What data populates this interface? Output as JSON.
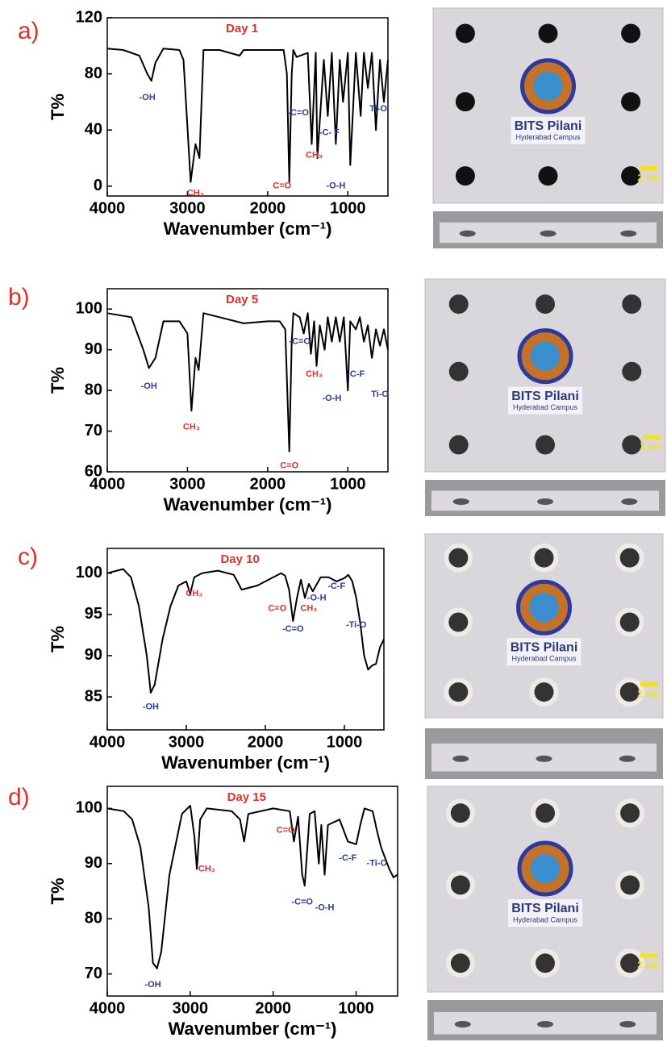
{
  "chart_data": [
    {
      "type": "line",
      "label": "a)",
      "title": "Day 1",
      "xlabel": "Wavenumber (cm⁻¹)",
      "ylabel": "T%",
      "color": "#000000",
      "xlim": [
        4000,
        500
      ],
      "ylim": [
        -7,
        120
      ],
      "xticks": [
        4000,
        3000,
        2000,
        1000
      ],
      "yticks": [
        0,
        40,
        80,
        120
      ],
      "x": [
        4000,
        3800,
        3600,
        3500,
        3450,
        3400,
        3300,
        3100,
        3050,
        2960,
        2900,
        2850,
        2800,
        2600,
        2350,
        2300,
        2000,
        1800,
        1760,
        1730,
        1700,
        1680,
        1640,
        1500,
        1450,
        1400,
        1380,
        1300,
        1250,
        1200,
        1150,
        1100,
        1060,
        1000,
        970,
        900,
        840,
        800,
        750,
        700,
        650,
        600,
        550,
        500
      ],
      "values": [
        98,
        97,
        93,
        80,
        75,
        88,
        98,
        97,
        90,
        3,
        30,
        20,
        97,
        97,
        93,
        97,
        97,
        97,
        80,
        3,
        80,
        97,
        92,
        95,
        30,
        95,
        20,
        90,
        50,
        95,
        30,
        90,
        60,
        95,
        15,
        95,
        50,
        95,
        70,
        95,
        40,
        90,
        60,
        90
      ],
      "annotations": [
        {
          "text": "-OH",
          "x": 3500,
          "y": 63,
          "color": "#2b3a9c"
        },
        {
          "text": "CH₃",
          "x": 2900,
          "y": -5,
          "color": "#e0302a"
        },
        {
          "text": "C=O",
          "x": 1820,
          "y": 0,
          "color": "#e0302a"
        },
        {
          "text": "-C=O",
          "x": 1620,
          "y": 52,
          "color": "#2b3a9c"
        },
        {
          "text": "CH₃",
          "x": 1420,
          "y": 22,
          "color": "#e0302a"
        },
        {
          "text": "-C- F",
          "x": 1230,
          "y": 38,
          "color": "#2b3a9c"
        },
        {
          "text": "-O-H",
          "x": 1150,
          "y": 0,
          "color": "#2b3a9c"
        },
        {
          "text": "Ti-O",
          "x": 620,
          "y": 55,
          "color": "#2b3a9c"
        }
      ]
    },
    {
      "type": "line",
      "label": "b)",
      "title": "Day 5",
      "xlabel": "Wavenumber (cm⁻¹)",
      "ylabel": "T%",
      "color": "#000000",
      "xlim": [
        4000,
        500
      ],
      "ylim": [
        60,
        105
      ],
      "xticks": [
        4000,
        3000,
        2000,
        1000
      ],
      "yticks": [
        60,
        70,
        80,
        90,
        100
      ],
      "x": [
        4000,
        3700,
        3550,
        3480,
        3400,
        3300,
        3100,
        3000,
        2950,
        2900,
        2860,
        2800,
        2600,
        2300,
        2000,
        1850,
        1780,
        1730,
        1700,
        1680,
        1600,
        1550,
        1500,
        1460,
        1420,
        1390,
        1350,
        1290,
        1250,
        1200,
        1150,
        1100,
        1050,
        1000,
        970,
        900,
        850,
        800,
        750,
        700,
        650,
        600,
        550,
        500
      ],
      "values": [
        99,
        98,
        90,
        85.5,
        88,
        97,
        97,
        94,
        75,
        88,
        85,
        99,
        98,
        96.5,
        97,
        97,
        95,
        65,
        92,
        99,
        98,
        94,
        99,
        89,
        97,
        86,
        96,
        90,
        98,
        92,
        98,
        92,
        98,
        80,
        97,
        95,
        98,
        92,
        96,
        88,
        95,
        91,
        95,
        90
      ],
      "annotations": [
        {
          "text": "-OH",
          "x": 3480,
          "y": 81,
          "color": "#2b3a9c"
        },
        {
          "text": "CH₃",
          "x": 2950,
          "y": 71,
          "color": "#e0302a"
        },
        {
          "text": "C=O",
          "x": 1730,
          "y": 61.5,
          "color": "#e0302a"
        },
        {
          "text": "-C=O",
          "x": 1600,
          "y": 92,
          "color": "#2b3a9c"
        },
        {
          "text": "CH₃",
          "x": 1420,
          "y": 84,
          "color": "#e0302a"
        },
        {
          "text": "-O-H",
          "x": 1200,
          "y": 78,
          "color": "#2b3a9c"
        },
        {
          "text": "-C-F",
          "x": 900,
          "y": 84,
          "color": "#2b3a9c"
        },
        {
          "text": "Ti-O",
          "x": 600,
          "y": 79,
          "color": "#2b3a9c"
        }
      ]
    },
    {
      "type": "line",
      "label": "c)",
      "title": "Day 10",
      "xlabel": "Wavenumber (cm⁻¹)",
      "ylabel": "T%",
      "color": "#000000",
      "xlim": [
        4000,
        500
      ],
      "ylim": [
        81,
        103
      ],
      "xticks": [
        4000,
        3000,
        2000,
        1000
      ],
      "yticks": [
        85,
        90,
        95,
        100
      ],
      "x": [
        4000,
        3800,
        3700,
        3600,
        3500,
        3450,
        3400,
        3300,
        3200,
        3100,
        3000,
        2950,
        2900,
        2800,
        2600,
        2400,
        2300,
        2100,
        1900,
        1800,
        1750,
        1700,
        1650,
        1600,
        1550,
        1500,
        1450,
        1400,
        1300,
        1200,
        1100,
        1000,
        950,
        900,
        850,
        800,
        750,
        700,
        650,
        600,
        550,
        500
      ],
      "values": [
        100,
        100.5,
        99.5,
        96,
        90,
        85.5,
        86.5,
        92,
        96,
        98.5,
        99,
        97.5,
        99.5,
        100,
        100.3,
        99.8,
        98,
        98.5,
        99.5,
        100,
        99.7,
        98,
        94.2,
        97,
        99.2,
        97,
        98.7,
        97.8,
        99.5,
        99.5,
        99,
        99.4,
        99.8,
        99,
        97,
        94,
        90,
        88.3,
        88.8,
        89,
        91,
        92
      ],
      "annotations": [
        {
          "text": "-OH",
          "x": 3450,
          "y": 83.8,
          "color": "#2b3a9c"
        },
        {
          "text": "CH₃",
          "x": 2900,
          "y": 97.5,
          "color": "#e0302a"
        },
        {
          "text": "C=O",
          "x": 1850,
          "y": 95.7,
          "color": "#e0302a"
        },
        {
          "text": "-C=O",
          "x": 1650,
          "y": 93.2,
          "color": "#2b3a9c"
        },
        {
          "text": "CH₃",
          "x": 1450,
          "y": 95.7,
          "color": "#e0302a"
        },
        {
          "text": "-O-H",
          "x": 1350,
          "y": 97,
          "color": "#2b3a9c"
        },
        {
          "text": "-C-F",
          "x": 1100,
          "y": 98.4,
          "color": "#2b3a9c"
        },
        {
          "text": "-Ti-O",
          "x": 850,
          "y": 93.7,
          "color": "#2b3a9c"
        }
      ]
    },
    {
      "type": "line",
      "label": "d)",
      "title": "Day 15",
      "xlabel": "Wavenumber (cm⁻¹)",
      "ylabel": "T%",
      "color": "#000000",
      "xlim": [
        4000,
        500
      ],
      "ylim": [
        66,
        104
      ],
      "xticks": [
        4000,
        3000,
        2000,
        1000
      ],
      "yticks": [
        70,
        80,
        90,
        100
      ],
      "x": [
        4000,
        3800,
        3700,
        3600,
        3500,
        3450,
        3400,
        3350,
        3250,
        3100,
        3000,
        2950,
        2920,
        2880,
        2800,
        2500,
        2400,
        2350,
        2300,
        2000,
        1800,
        1750,
        1700,
        1650,
        1620,
        1560,
        1500,
        1450,
        1420,
        1380,
        1340,
        1200,
        1100,
        1000,
        950,
        900,
        800,
        750,
        700,
        600,
        550,
        500
      ],
      "values": [
        100,
        99.5,
        98,
        93,
        82,
        72,
        71,
        74,
        88,
        99,
        100.5,
        95,
        89,
        98,
        100,
        99.5,
        98,
        94,
        99,
        100,
        99.5,
        94,
        98.5,
        88,
        86,
        99,
        99.5,
        90,
        97,
        88,
        97,
        98,
        94,
        93.5,
        97,
        100,
        99.5,
        96,
        93,
        89,
        87.5,
        88
      ],
      "annotations": [
        {
          "text": "-OH",
          "x": 3450,
          "y": 68,
          "color": "#2b3a9c"
        },
        {
          "text": "CH₃",
          "x": 2800,
          "y": 89,
          "color": "#e0302a"
        },
        {
          "text": "C=O",
          "x": 1850,
          "y": 96,
          "color": "#e0302a"
        },
        {
          "text": "-C=O",
          "x": 1650,
          "y": 83,
          "color": "#2b3a9c"
        },
        {
          "text": "-O-H",
          "x": 1380,
          "y": 82,
          "color": "#2b3a9c"
        },
        {
          "text": "-C-F",
          "x": 1100,
          "y": 91,
          "color": "#2b3a9c"
        },
        {
          "text": "-Ti-O",
          "x": 750,
          "y": 90,
          "color": "#2b3a9c"
        }
      ]
    }
  ],
  "photos": [
    {
      "title": "BITS Pilani",
      "subtitle": "Hyderabad Campus",
      "scale": "2 cm"
    },
    {
      "title": "BITS Pilani",
      "subtitle": "Hyderabad Campus",
      "scale": "2 cm"
    },
    {
      "title": "BITS Pilani",
      "subtitle": "Hyderabad Campus",
      "scale": "2 cm"
    },
    {
      "title": "BITS Pilani",
      "subtitle": "Hyderabad Campus",
      "scale": "2 cm"
    }
  ]
}
